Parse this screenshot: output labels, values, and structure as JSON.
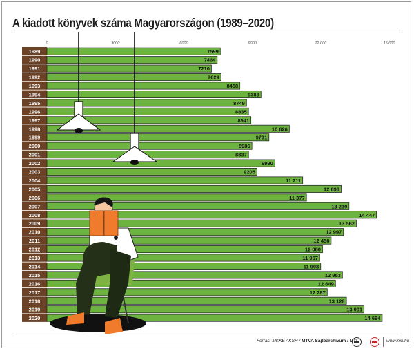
{
  "title": "A kiadott könyvek száma Magyarországon (1989–2020)",
  "footer": {
    "source_prefix": "Forrás: MKKE / KSH / ",
    "source_bold": "MTVA Sajtóarchívum / MTI",
    "website": "www.mti.hu"
  },
  "colors": {
    "bar": "#6db33f",
    "bar_border": "#2a2a2a",
    "year_column": "#6b4226",
    "year_text": "#ffffff",
    "lamp": "#ffffff",
    "book": "#f07b2c"
  },
  "chart_data": {
    "type": "bar",
    "orientation": "horizontal",
    "title": "A kiadott könyvek száma Magyarországon (1989–2020)",
    "categories": [
      "1989",
      "1990",
      "1991",
      "1992",
      "1993",
      "1994",
      "1995",
      "1996",
      "1997",
      "1998",
      "1999",
      "2000",
      "2001",
      "2002",
      "2003",
      "2004",
      "2005",
      "2006",
      "2007",
      "2008",
      "2009",
      "2010",
      "2011",
      "2012",
      "2013",
      "2014",
      "2015",
      "2016",
      "2017",
      "2018",
      "2019",
      "2020"
    ],
    "values": [
      7599,
      7464,
      7210,
      7629,
      8458,
      9383,
      8749,
      8835,
      8941,
      10626,
      9731,
      8986,
      8837,
      9990,
      9205,
      11211,
      12898,
      11377,
      13239,
      14447,
      13562,
      12997,
      12456,
      12080,
      11957,
      11998,
      12953,
      12649,
      12287,
      13128,
      13901,
      14694
    ],
    "value_labels": [
      "7599",
      "7464",
      "7210",
      "7629",
      "8458",
      "9383",
      "8749",
      "8835",
      "8941",
      "10 626",
      "9731",
      "8986",
      "8837",
      "9990",
      "9205",
      "11 211",
      "12 898",
      "11 377",
      "13 239",
      "14 447",
      "13 562",
      "12 997",
      "12 456",
      "12 080",
      "11 957",
      "11 998",
      "12 953",
      "12 649",
      "12 287",
      "13 128",
      "13 901",
      "14 694"
    ],
    "xlim": [
      0,
      15000
    ],
    "xticks": [
      0,
      3000,
      6000,
      9000,
      12000,
      15000
    ],
    "xtick_labels": [
      "0",
      "3000",
      "6000",
      "9000",
      "12 000",
      "15 000"
    ],
    "grid": false,
    "legend": "none"
  }
}
